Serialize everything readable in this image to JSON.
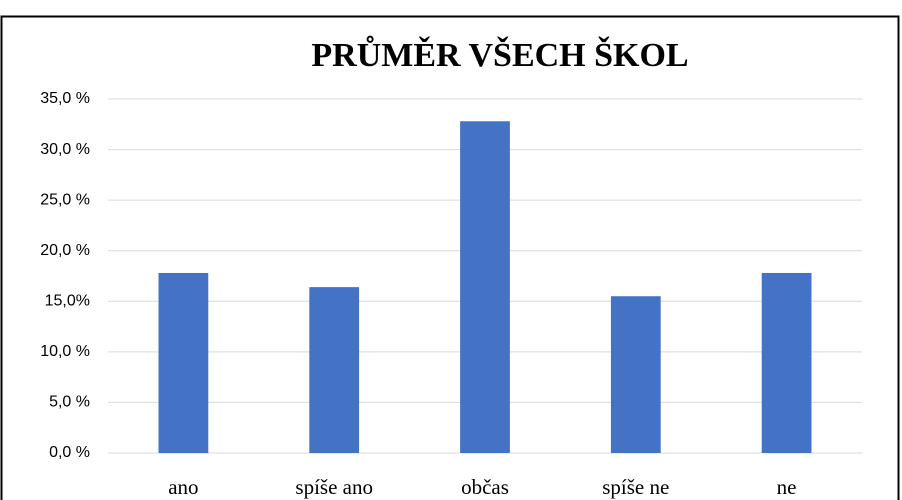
{
  "chart_data": {
    "type": "bar",
    "title": "PRŮMĚR VŠECH ŠKOL",
    "categories": [
      "ano",
      "spíše ano",
      "občas",
      "spíše ne",
      "ne"
    ],
    "values": [
      17.8,
      16.4,
      32.8,
      15.5,
      17.8
    ],
    "color": "#4472c4",
    "ylim": [
      0,
      35
    ],
    "yticks": [
      {
        "value": 0,
        "label": "0,0 %"
      },
      {
        "value": 5,
        "label": "5,0 %"
      },
      {
        "value": 10,
        "label": "10,0 %"
      },
      {
        "value": 15,
        "label": "15,0%"
      },
      {
        "value": 20,
        "label": "20,0 %"
      },
      {
        "value": 25,
        "label": "25,0 %"
      },
      {
        "value": 30,
        "label": "30,0 %"
      },
      {
        "value": 35,
        "label": "35,0 %"
      }
    ],
    "grid": true
  }
}
